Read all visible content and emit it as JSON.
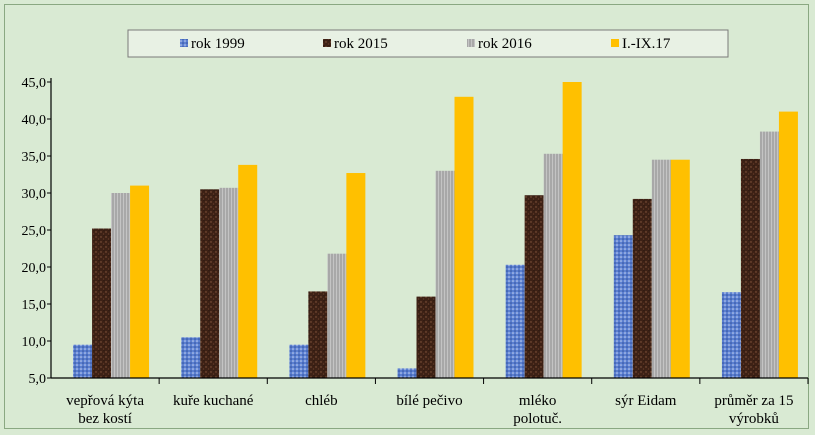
{
  "chart_data": {
    "type": "bar",
    "categories": [
      [
        "vepřová kýta",
        "bez kostí"
      ],
      [
        "kuře kuchané"
      ],
      [
        "chléb"
      ],
      [
        "bílé pečivo"
      ],
      [
        "mléko",
        "polotuč."
      ],
      [
        "sýr Eidam"
      ],
      [
        "průměr za 15",
        "výrobků"
      ]
    ],
    "series": [
      {
        "name": "rok 1999",
        "color": "#5b7fd0",
        "pattern": "dots",
        "values": [
          9.5,
          10.5,
          9.5,
          6.3,
          20.3,
          24.3,
          16.6
        ]
      },
      {
        "name": "rok 2015",
        "color": "#4a2a1c",
        "pattern": "speckle",
        "values": [
          25.2,
          30.5,
          16.7,
          16.0,
          29.7,
          29.2,
          34.6
        ]
      },
      {
        "name": "rok 2016",
        "color": "#a6a6a6",
        "pattern": "stripes",
        "values": [
          30.0,
          30.7,
          21.8,
          33.0,
          35.3,
          34.5,
          38.3
        ]
      },
      {
        "name": "I.-IX.17",
        "color": "#ffc000",
        "pattern": "solid",
        "values": [
          31.0,
          33.8,
          32.7,
          43.0,
          45.0,
          34.5,
          41.0
        ]
      }
    ],
    "yticks": [
      "5,0",
      "10,0",
      "15,0",
      "20,0",
      "25,0",
      "30,0",
      "35,0",
      "40,0",
      "45,0"
    ],
    "ylim": [
      5,
      45
    ],
    "grid": false,
    "legend_position": "top"
  }
}
